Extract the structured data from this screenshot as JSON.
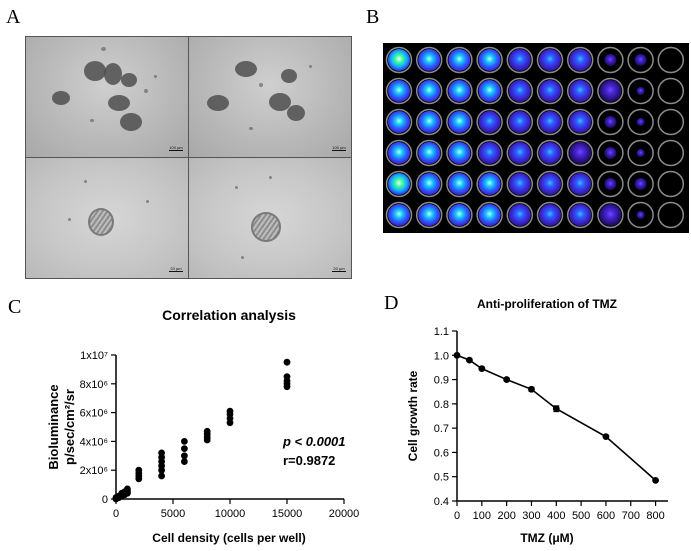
{
  "panels": {
    "a": {
      "letter": "A",
      "scale_top": "100 µm",
      "scale_bottom": "20 µm"
    },
    "b": {
      "letter": "B"
    },
    "c": {
      "letter": "C"
    },
    "d": {
      "letter": "D"
    }
  },
  "plate": {
    "rows": 6,
    "cols": 10,
    "intensity_by_column": [
      1.0,
      0.95,
      0.85,
      0.75,
      0.65,
      0.55,
      0.45,
      0.3,
      0.15,
      0.0
    ]
  },
  "chart_data": [
    {
      "type": "scatter",
      "title": "Correlation analysis",
      "xlabel": "Cell density (cells per well)",
      "ylabel_line1": "Bioluminance",
      "ylabel_line2": "p/sec/cm²/sr",
      "xlim": [
        0,
        20000
      ],
      "ylim": [
        0,
        10000000
      ],
      "x_ticks": [
        "0",
        "5000",
        "10000",
        "15000",
        "20000"
      ],
      "x_tick_values": [
        0,
        5000,
        10000,
        15000,
        20000
      ],
      "y_ticks": [
        "0",
        "2x10⁶",
        "4x10⁶",
        "6x10⁶",
        "8x10⁶",
        "1x10⁷"
      ],
      "y_tick_values": [
        0,
        2000000,
        4000000,
        6000000,
        8000000,
        10000000
      ],
      "annotation_p": "p < 0.0001",
      "annotation_r": "r=0.9872",
      "points": [
        [
          0,
          0
        ],
        [
          0,
          50000
        ],
        [
          0,
          100000
        ],
        [
          250,
          100000
        ],
        [
          250,
          200000
        ],
        [
          250,
          150000
        ],
        [
          500,
          200000
        ],
        [
          500,
          300000
        ],
        [
          500,
          400000
        ],
        [
          750,
          300000
        ],
        [
          750,
          500000
        ],
        [
          750,
          400000
        ],
        [
          1000,
          400000
        ],
        [
          1000,
          600000
        ],
        [
          1000,
          700000
        ],
        [
          1000,
          500000
        ],
        [
          2000,
          1400000
        ],
        [
          2000,
          1600000
        ],
        [
          2000,
          1800000
        ],
        [
          2000,
          2000000
        ],
        [
          4000,
          1600000
        ],
        [
          4000,
          2000000
        ],
        [
          4000,
          2300000
        ],
        [
          4000,
          2600000
        ],
        [
          4000,
          2900000
        ],
        [
          4000,
          3200000
        ],
        [
          6000,
          2600000
        ],
        [
          6000,
          3000000
        ],
        [
          6000,
          3500000
        ],
        [
          6000,
          4000000
        ],
        [
          8000,
          4100000
        ],
        [
          8000,
          4300000
        ],
        [
          8000,
          4500000
        ],
        [
          8000,
          4700000
        ],
        [
          10000,
          5300000
        ],
        [
          10000,
          5600000
        ],
        [
          10000,
          5900000
        ],
        [
          10000,
          6100000
        ],
        [
          15000,
          7800000
        ],
        [
          15000,
          8000000
        ],
        [
          15000,
          8200000
        ],
        [
          15000,
          8500000
        ],
        [
          15000,
          9500000
        ]
      ]
    },
    {
      "type": "line",
      "title": "Anti-proliferation of TMZ",
      "xlabel": "TMZ (μM)",
      "ylabel": "Cell growth rate",
      "xlim": [
        0,
        850
      ],
      "ylim": [
        0.4,
        1.1
      ],
      "x_ticks": [
        "0",
        "100",
        "200",
        "300",
        "400",
        "500",
        "600",
        "700",
        "800"
      ],
      "x_tick_values": [
        0,
        100,
        200,
        300,
        400,
        500,
        600,
        700,
        800
      ],
      "y_ticks": [
        "0.4",
        "0.5",
        "0.6",
        "0.7",
        "0.8",
        "0.9",
        "1.0",
        "1.1"
      ],
      "y_tick_values": [
        0.4,
        0.5,
        0.6,
        0.7,
        0.8,
        0.9,
        1.0,
        1.1
      ],
      "x": [
        0,
        50,
        100,
        200,
        300,
        400,
        600,
        800
      ],
      "y": [
        1.0,
        0.98,
        0.945,
        0.9,
        0.86,
        0.78,
        0.665,
        0.485
      ],
      "err": [
        0.005,
        0.005,
        0.006,
        0.005,
        0.008,
        0.012,
        0.005,
        0.004
      ]
    }
  ]
}
